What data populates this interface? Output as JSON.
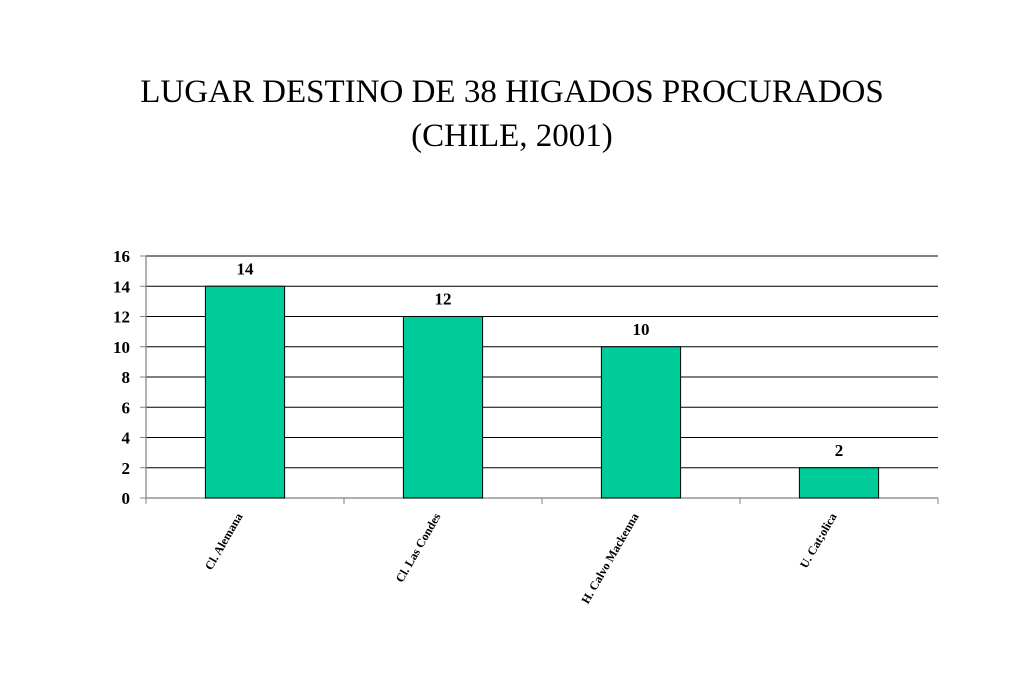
{
  "slide": {
    "title_line1": "LUGAR DESTINO DE 38 HIGADOS PROCURADOS",
    "title_line2": "(CHILE, 2001)"
  },
  "chart_data": {
    "type": "bar",
    "categories": [
      "Cl. Alemana",
      "Cl. Las Condes",
      "H. Calvo Mackenna",
      "U. Católica"
    ],
    "category_labels_shown": [
      "Cl. Alemana",
      "Cl. Las Condes",
      "H. Calvo Mackenna",
      "U. Cat;olica"
    ],
    "values": [
      14,
      12,
      10,
      2
    ],
    "data_labels": [
      "14",
      "12",
      "10",
      "2"
    ],
    "ylim": [
      0,
      16
    ],
    "yticks": [
      0,
      2,
      4,
      6,
      8,
      10,
      12,
      14,
      16
    ],
    "grid": true,
    "legend": "none",
    "colors": {
      "bar": "#00cc99",
      "bar_edge": "#000000",
      "grid": "#000000",
      "axis": "#808080"
    }
  }
}
